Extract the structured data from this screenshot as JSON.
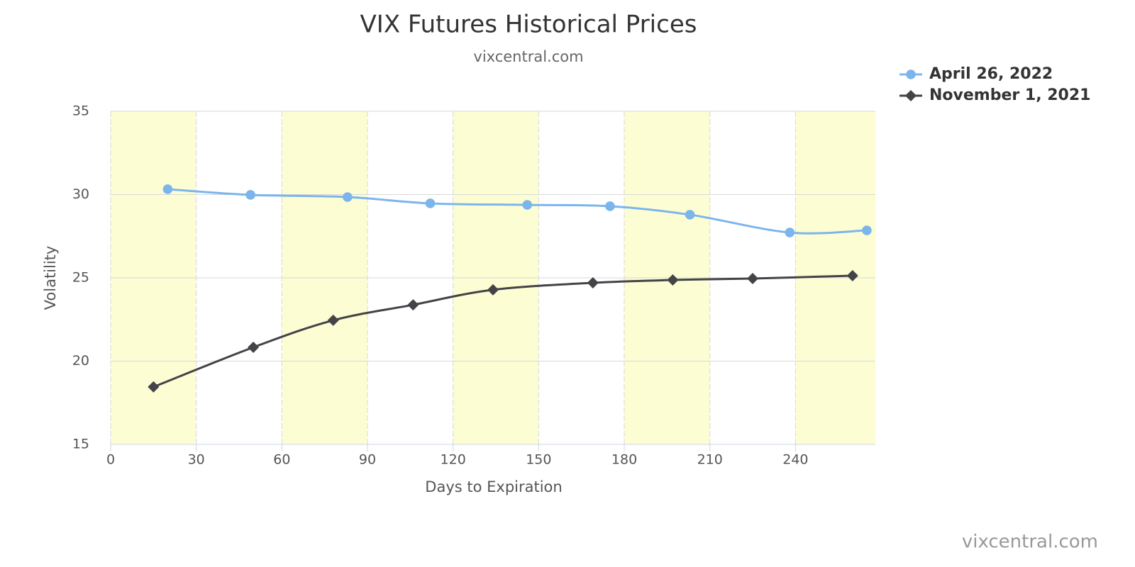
{
  "chart_data": {
    "type": "line",
    "title": "VIX Futures Historical Prices",
    "subtitle": "vixcentral.com",
    "credit": "vixcentral.com",
    "x_label": "Days to Expiration",
    "y_label": "Volatility",
    "xlim": [
      0,
      268
    ],
    "xticks": [
      0,
      30,
      60,
      90,
      120,
      150,
      180,
      210,
      240
    ],
    "ylim": [
      15,
      35
    ],
    "yticks": [
      15,
      20,
      25,
      30,
      35
    ],
    "grid": true,
    "legend": "top-right",
    "band_color": "#fdfdd4",
    "series": [
      {
        "name": "April 26, 2022",
        "color": "#7cb5ec",
        "marker": "circle",
        "x": [
          20,
          49,
          83,
          112,
          146,
          175,
          203,
          238,
          265
        ],
        "values": [
          30.32,
          29.98,
          29.85,
          29.47,
          29.38,
          29.3,
          28.79,
          27.72,
          27.85
        ]
      },
      {
        "name": "November 1, 2021",
        "color": "#434348",
        "marker": "diamond",
        "x": [
          15,
          50,
          78,
          106,
          134,
          169,
          197,
          225,
          260
        ],
        "values": [
          18.45,
          20.83,
          22.45,
          23.38,
          24.28,
          24.7,
          24.87,
          24.96,
          25.13
        ]
      }
    ]
  }
}
